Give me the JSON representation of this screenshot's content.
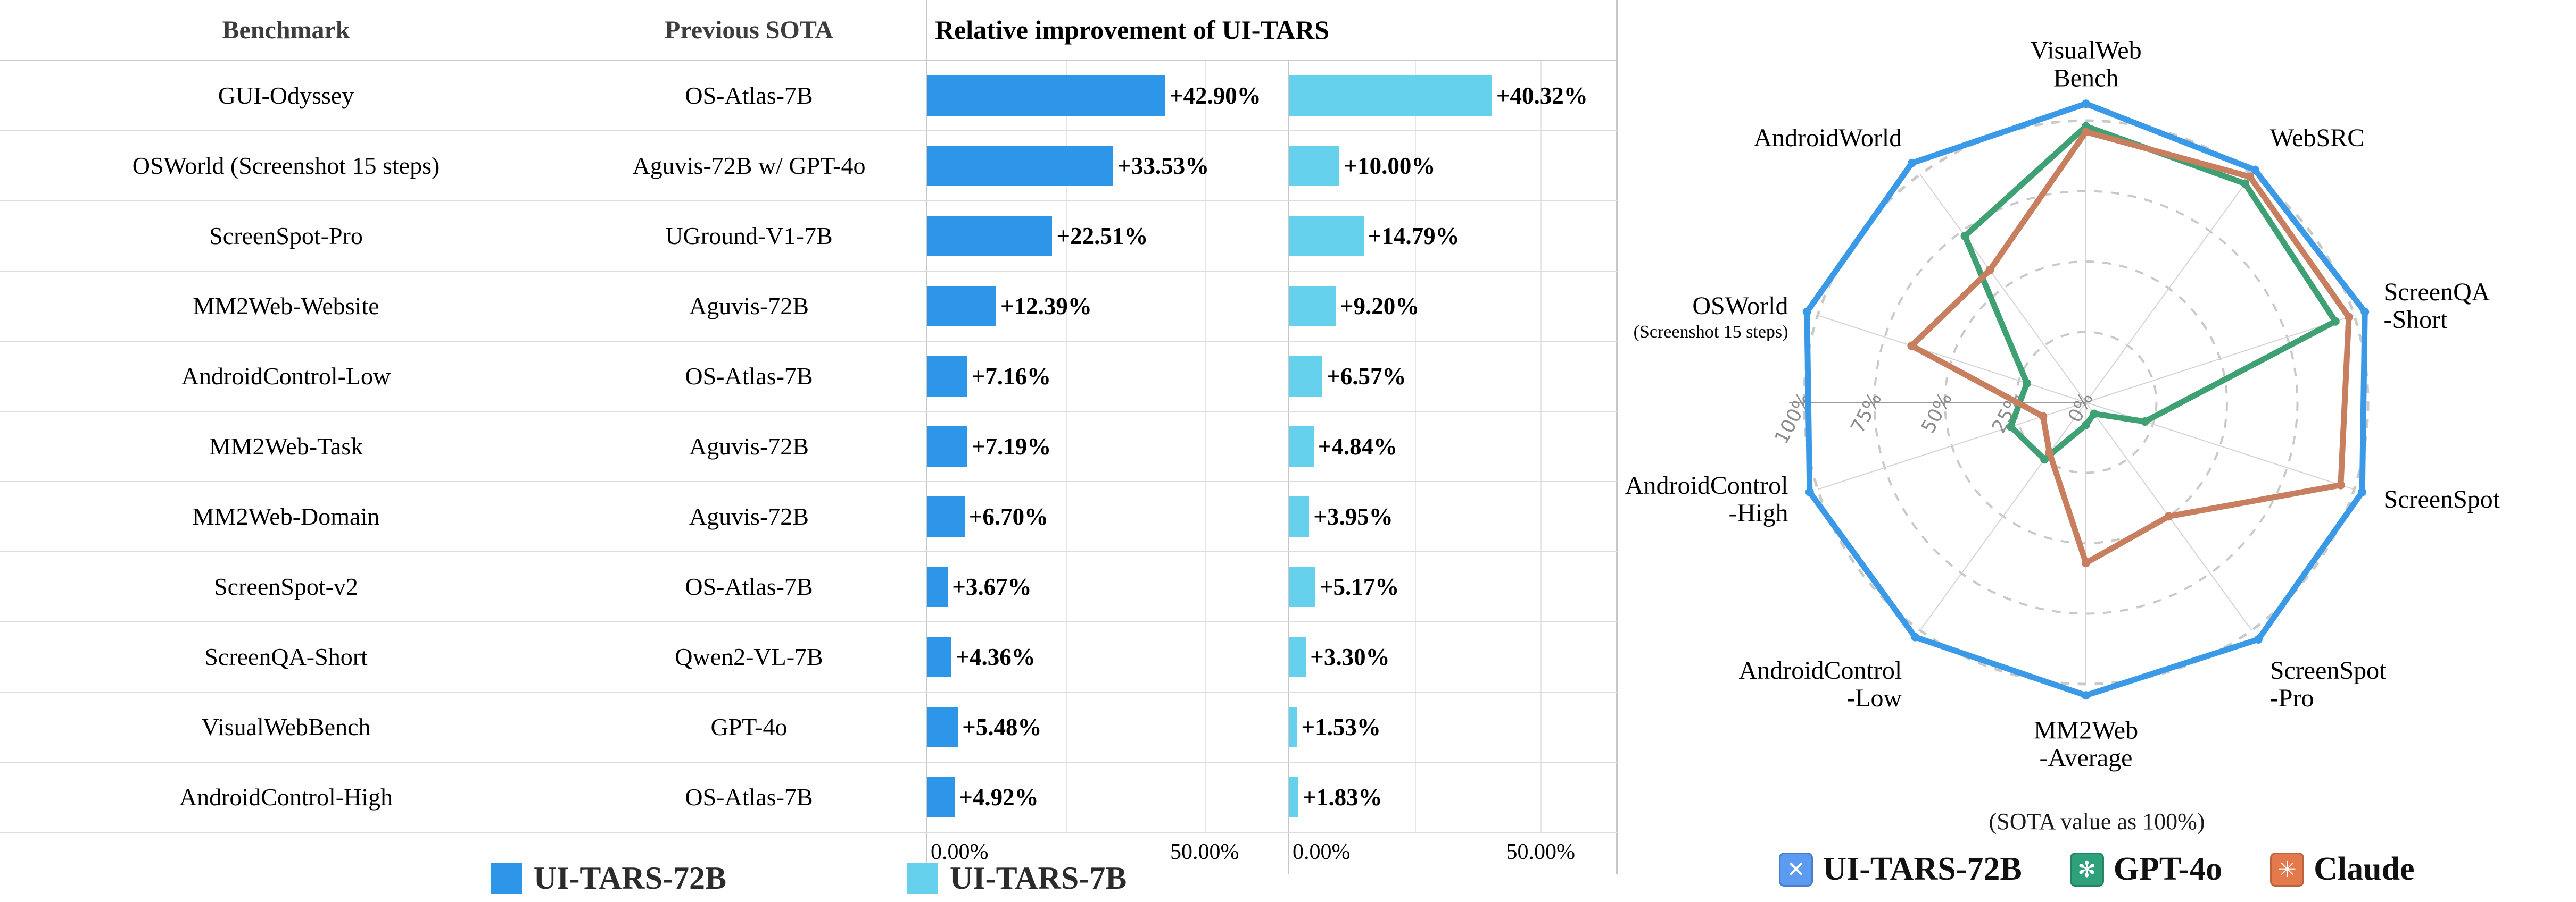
{
  "table": {
    "headers": {
      "benchmark": "Benchmark",
      "previous_sota": "Previous SOTA",
      "improvement": "Relative improvement of UI-TARS"
    },
    "rows": [
      {
        "benchmark": "GUI-Odyssey",
        "previous_sota": "OS-Atlas-7B",
        "label_72b": "+42.90%",
        "label_7b": "+40.32%"
      },
      {
        "benchmark": "OSWorld (Screenshot 15 steps)",
        "previous_sota": "Aguvis-72B w/ GPT-4o",
        "label_72b": "+33.53%",
        "label_7b": "+10.00%"
      },
      {
        "benchmark": "ScreenSpot-Pro",
        "previous_sota": "UGround-V1-7B",
        "label_72b": "+22.51%",
        "label_7b": "+14.79%"
      },
      {
        "benchmark": "MM2Web-Website",
        "previous_sota": "Aguvis-72B",
        "label_72b": "+12.39%",
        "label_7b": "+9.20%"
      },
      {
        "benchmark": "AndroidControl-Low",
        "previous_sota": "OS-Atlas-7B",
        "label_72b": "+7.16%",
        "label_7b": "+6.57%"
      },
      {
        "benchmark": "MM2Web-Task",
        "previous_sota": "Aguvis-72B",
        "label_72b": "+7.19%",
        "label_7b": "+4.84%"
      },
      {
        "benchmark": "MM2Web-Domain",
        "previous_sota": "Aguvis-72B",
        "label_72b": "+6.70%",
        "label_7b": "+3.95%"
      },
      {
        "benchmark": "ScreenSpot-v2",
        "previous_sota": "OS-Atlas-7B",
        "label_72b": "+3.67%",
        "label_7b": "+5.17%"
      },
      {
        "benchmark": "ScreenQA-Short",
        "previous_sota": "Qwen2-VL-7B",
        "label_72b": "+4.36%",
        "label_7b": "+3.30%"
      },
      {
        "benchmark": "VisualWebBench",
        "previous_sota": "GPT-4o",
        "label_72b": "+5.48%",
        "label_7b": "+1.53%"
      },
      {
        "benchmark": "AndroidControl-High",
        "previous_sota": "OS-Atlas-7B",
        "label_72b": "+4.92%",
        "label_7b": "+1.83%"
      }
    ],
    "legend": [
      {
        "label": "UI-TARS-72B",
        "color": "#2E96E8"
      },
      {
        "label": "UI-TARS-7B",
        "color": "#66D1EC"
      }
    ]
  },
  "chart_data": [
    {
      "type": "bar",
      "orientation": "horizontal",
      "title": "Relative improvement of UI-TARS",
      "categories": [
        "GUI-Odyssey",
        "OSWorld (Screenshot 15 steps)",
        "ScreenSpot-Pro",
        "MM2Web-Website",
        "AndroidControl-Low",
        "MM2Web-Task",
        "MM2Web-Domain",
        "ScreenSpot-v2",
        "ScreenQA-Short",
        "VisualWebBench",
        "AndroidControl-High"
      ],
      "series": [
        {
          "name": "UI-TARS-72B",
          "color": "#2E96E8",
          "values": [
            42.9,
            33.53,
            22.51,
            12.39,
            7.16,
            7.19,
            6.7,
            3.67,
            4.36,
            5.48,
            4.92
          ]
        },
        {
          "name": "UI-TARS-7B",
          "color": "#66D1EC",
          "values": [
            40.32,
            10.0,
            14.79,
            9.2,
            6.57,
            4.84,
            3.95,
            5.17,
            3.3,
            1.53,
            1.83
          ]
        }
      ],
      "xlim": [
        0,
        65
      ],
      "xticks": [
        "0.00%",
        "50.00%"
      ],
      "grid": "vertical lines at 0%, 25%, 50%"
    },
    {
      "type": "radar",
      "caption": "(SOTA value as 100%)",
      "axes": [
        {
          "label": "VisualWeb\nBench"
        },
        {
          "label": "WebSRC"
        },
        {
          "label": "ScreenQA\n-Short"
        },
        {
          "label": "ScreenSpot"
        },
        {
          "label": "ScreenSpot\n-Pro"
        },
        {
          "label": "MM2Web\n-Average"
        },
        {
          "label": "AndroidControl\n-Low"
        },
        {
          "label": "AndroidControl\n-High"
        },
        {
          "label": "OSWorld",
          "sub": "(Screenshot 15 steps)"
        },
        {
          "label": "AndroidWorld"
        }
      ],
      "radial_ticks": [
        "100%",
        "75%",
        "50%",
        "25%",
        "0%"
      ],
      "rlim": [
        0,
        110
      ],
      "grid": "dashed circles at 25/50/75/100",
      "series": [
        {
          "name": "UI-TARS-72B",
          "color": "#3B9AE8",
          "icon": "ui-tars-logo",
          "icon_bg": "#5B9BF2",
          "icon_glyph": "✕",
          "values": [
            106,
            102,
            104,
            103,
            104,
            104,
            103,
            103,
            104,
            105
          ]
        },
        {
          "name": "GPT-4o",
          "color": "#3FA173",
          "icon": "openai-logo",
          "icon_bg": "#2EA17C",
          "icon_glyph": "✻",
          "values": [
            98,
            96,
            93,
            22,
            5,
            8,
            25,
            28,
            22,
            73
          ]
        },
        {
          "name": "Claude",
          "color": "#C77F5F",
          "icon": "claude-logo",
          "icon_bg": "#E5794E",
          "icon_glyph": "✳",
          "values": [
            96,
            99,
            98,
            95,
            50,
            57,
            22,
            16,
            65,
            58
          ]
        }
      ]
    }
  ]
}
